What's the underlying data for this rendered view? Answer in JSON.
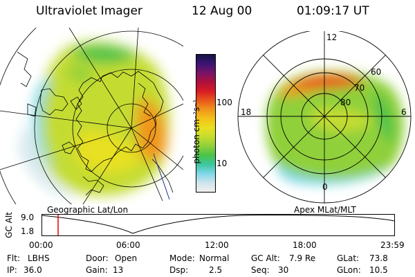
{
  "header": {
    "title": "Ultraviolet Imager",
    "date": "12 Aug 00",
    "time": "01:09:17 UT"
  },
  "colorbar": {
    "label": "photon cm⁻²s⁻¹",
    "ticks": [
      "100",
      "10"
    ],
    "colors": [
      "#f0f0f0",
      "#cfe4ec",
      "#7ed8e8",
      "#3cc6a0",
      "#4bc34a",
      "#8fd03a",
      "#c4dc30",
      "#e8e020",
      "#f4c218",
      "#f0961c",
      "#e8581c",
      "#d81c24",
      "#b0103c",
      "#781466",
      "#3c1474",
      "#141446"
    ]
  },
  "geographic_map": {
    "caption": "Geographic Lat/Lon"
  },
  "polar_map": {
    "caption": "Apex MLat/MLT",
    "mlt_labels": [
      "12",
      "18",
      "6",
      "0"
    ],
    "lat_labels": [
      "60",
      "70",
      "80"
    ]
  },
  "altitude_plot": {
    "axis_label": "GC Alt",
    "y_ticks": [
      "9.0",
      "1.8"
    ],
    "x_ticks": [
      "00:00",
      "06:00",
      "12:00",
      "18:00",
      "23:59"
    ]
  },
  "info": {
    "filter_label": "Flt:",
    "filter_value": "LBHS",
    "ip_label": "IP:",
    "ip_value": "36.0",
    "door_label": "Door:",
    "door_value": "Open",
    "gain_label": "Gain:",
    "gain_value": "13",
    "mode_label": "Mode:",
    "mode_value": "Normal",
    "dsp_label": "Dsp:",
    "dsp_value": "2.5",
    "gcalt_label": "GC Alt:",
    "gcalt_value": "7.9 Re",
    "seq_label": "Seq:",
    "seq_value": "30",
    "glat_label": "GLat:",
    "glat_value": "73.8",
    "glon_label": "GLon:",
    "glon_value": "10.5"
  }
}
